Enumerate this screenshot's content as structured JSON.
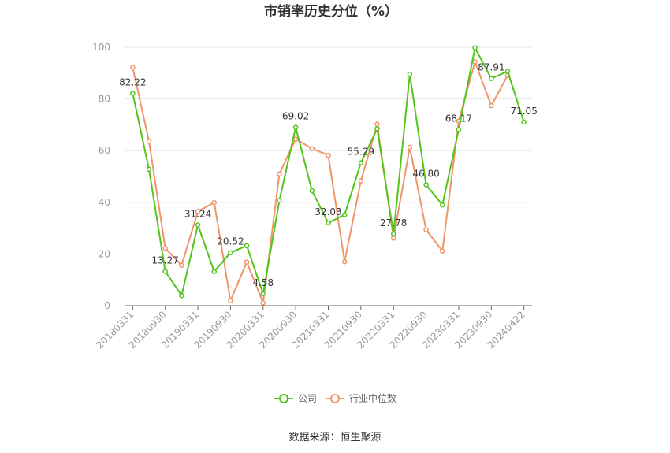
{
  "chart_data": {
    "type": "line",
    "title": "市销率历史分位（%）",
    "source": "数据来源：恒生聚源",
    "ylim": [
      0,
      100
    ],
    "yticks": [
      0,
      20,
      40,
      60,
      80,
      100
    ],
    "grid": true,
    "legend_position": "bottom",
    "xtick_labels": [
      "20180331",
      "20180930",
      "20190331",
      "20190930",
      "20200331",
      "20200930",
      "20210331",
      "20210930",
      "20220331",
      "20220930",
      "20230331",
      "20230930",
      "20240422"
    ],
    "categories": [
      "20180331",
      "20180630",
      "20180930",
      "20181231",
      "20190331",
      "20190630",
      "20190930",
      "20191231",
      "20200331",
      "20200630",
      "20200930",
      "20201231",
      "20210331",
      "20210630",
      "20210930",
      "20211231",
      "20220331",
      "20220630",
      "20220930",
      "20221231",
      "20230331",
      "20230630",
      "20230930",
      "20231231",
      "20240422"
    ],
    "series": [
      {
        "name": "公司",
        "color": "#52c41a",
        "values": [
          82.22,
          52.8,
          13.27,
          3.9,
          31.24,
          13.2,
          20.52,
          23.2,
          4.58,
          40.7,
          69.02,
          44.5,
          32.03,
          35.2,
          55.29,
          68.5,
          27.78,
          89.6,
          46.8,
          39.0,
          68.17,
          99.8,
          87.91,
          90.7,
          71.05
        ],
        "labels": {
          "0": "82.22",
          "2": "13.27",
          "4": "31.24",
          "6": "20.52",
          "8": "4.58",
          "10": "69.02",
          "12": "32.03",
          "14": "55.29",
          "16": "27.78",
          "18": "46.80",
          "20": "68.17",
          "22": "87.91",
          "24": "71.05"
        }
      },
      {
        "name": "行业中位数",
        "color": "#f0956a",
        "values": [
          92.3,
          63.6,
          22.2,
          15.6,
          36.5,
          39.9,
          1.9,
          16.9,
          1.1,
          51.0,
          64.5,
          60.8,
          58.2,
          17.0,
          48.3,
          70.2,
          26.1,
          61.3,
          29.4,
          21.1,
          71.4,
          94.4,
          77.4,
          89.1,
          null
        ]
      }
    ]
  }
}
